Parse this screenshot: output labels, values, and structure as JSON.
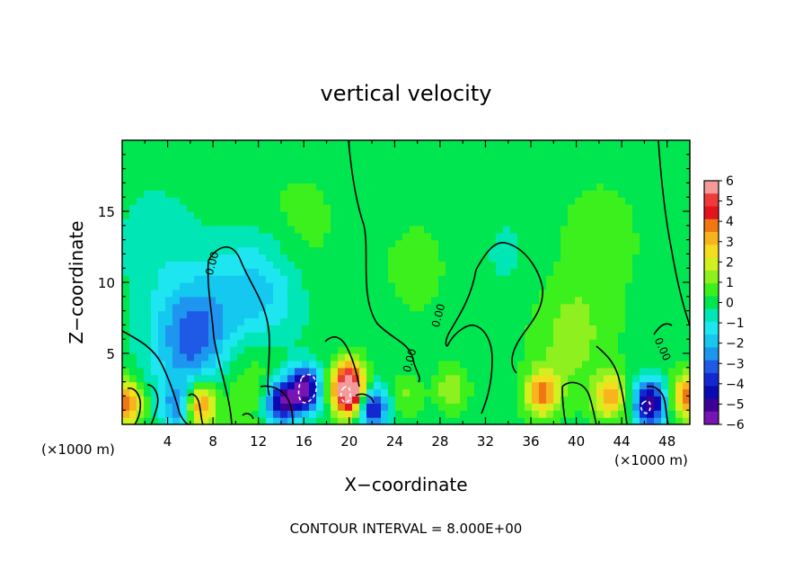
{
  "chart_data": {
    "type": "heatmap",
    "title": "vertical velocity",
    "xlabel": "X−coordinate",
    "ylabel": "Z−coordinate",
    "x_unit_left": "(×1000 m)",
    "x_unit_right": "(×1000 m)",
    "footer": "CONTOUR INTERVAL = 8.000E+00",
    "xlim": [
      0,
      50
    ],
    "ylim": [
      0,
      20
    ],
    "x_ticks": [
      4,
      8,
      12,
      16,
      20,
      24,
      28,
      32,
      36,
      40,
      44,
      48
    ],
    "y_ticks": [
      5,
      10,
      15
    ],
    "colorbar": {
      "range": [
        -6,
        6
      ],
      "tick_labels": [
        "6",
        "5",
        "4",
        "3",
        "2",
        "1",
        "0",
        "−1",
        "−2",
        "−3",
        "−4",
        "−5",
        "−6"
      ],
      "colors": [
        "#f49a9a",
        "#f03a3a",
        "#e4141c",
        "#f07814",
        "#f8b41c",
        "#f4dc1e",
        "#d2f01e",
        "#8ef01e",
        "#3cf01e",
        "#00e650",
        "#00e6b4",
        "#1ee6f0",
        "#14c8f0",
        "#1e96f0",
        "#1e5ae6",
        "#1428d2",
        "#0a0ab4",
        "#3c0096",
        "#7814b4"
      ]
    },
    "features": [
      {
        "x": 6.5,
        "z": 6.0,
        "value": -3.5
      },
      {
        "x": 16.0,
        "z": 2.5,
        "value": -6.0
      },
      {
        "x": 14.0,
        "z": 1.5,
        "value": -5.0
      },
      {
        "x": 20.0,
        "z": 2.0,
        "value": 5.0
      },
      {
        "x": 20.0,
        "z": 3.2,
        "value": 4.0
      },
      {
        "x": 22.0,
        "z": 1.2,
        "value": -4.5
      },
      {
        "x": 6.8,
        "z": 1.5,
        "value": 4.5
      },
      {
        "x": 0.4,
        "z": 1.5,
        "value": 4.0
      },
      {
        "x": 5.0,
        "z": 1.3,
        "value": -2.5
      },
      {
        "x": 46.5,
        "z": 1.5,
        "value": -5.5
      },
      {
        "x": 37.0,
        "z": 2.2,
        "value": 3.5
      },
      {
        "x": 43.0,
        "z": 2.0,
        "value": 3.0
      },
      {
        "x": 49.8,
        "z": 2.0,
        "value": 4.0
      },
      {
        "x": 12.0,
        "z": 9.0,
        "value": -2.0
      },
      {
        "x": 10.5,
        "z": 4.0,
        "value": 1.5
      },
      {
        "x": 25.0,
        "z": 2.0,
        "value": 1.0
      },
      {
        "x": 29.0,
        "z": 2.5,
        "value": 1.5
      },
      {
        "x": 39.5,
        "z": 6.0,
        "value": 1.2
      },
      {
        "x": 15.5,
        "z": 14.0,
        "value": 0.6
      },
      {
        "x": 42.0,
        "z": 13.0,
        "value": 0.7
      },
      {
        "x": 26.0,
        "z": 11.0,
        "value": 0.5
      },
      {
        "x": 3.0,
        "z": 13.0,
        "value": -0.6
      },
      {
        "x": 34.0,
        "z": 12.0,
        "value": -0.4
      }
    ],
    "contour_label": "0.00"
  }
}
